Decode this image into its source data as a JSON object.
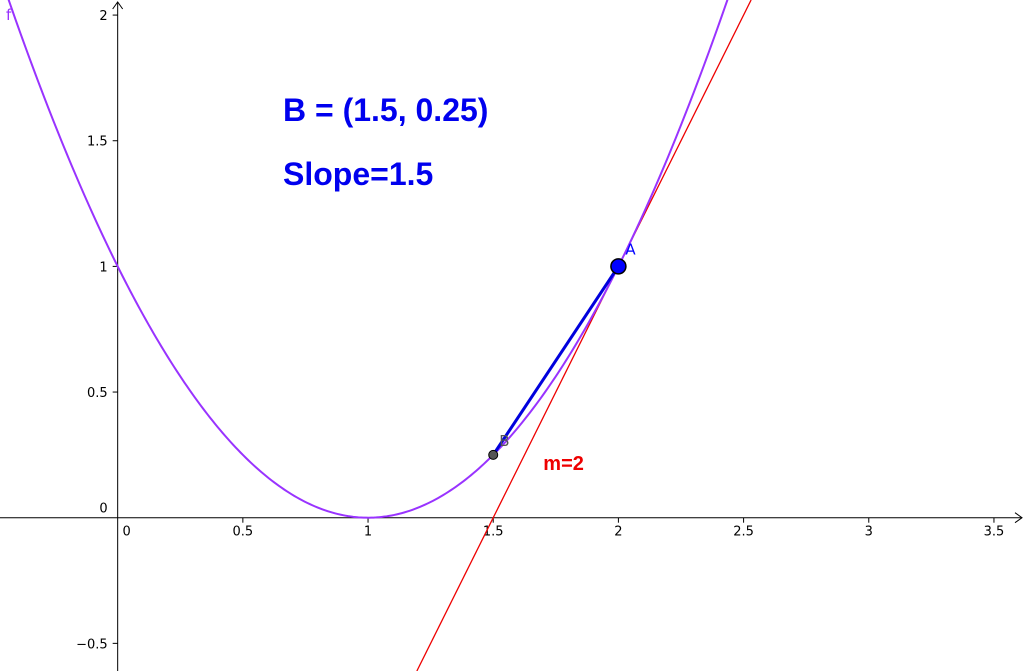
{
  "chart_data": {
    "type": "line",
    "x_range": [
      -0.47,
      3.62
    ],
    "y_range": [
      -0.61,
      2.06
    ],
    "x_ticks": [
      {
        "value": 0,
        "label": "0"
      },
      {
        "value": 0.5,
        "label": "0.5"
      },
      {
        "value": 1,
        "label": "1"
      },
      {
        "value": 1.5,
        "label": "1.5"
      },
      {
        "value": 2,
        "label": "2"
      },
      {
        "value": 2.5,
        "label": "2.5"
      },
      {
        "value": 3,
        "label": "3"
      },
      {
        "value": 3.5,
        "label": "3.5"
      }
    ],
    "y_ticks": [
      {
        "value": 0,
        "label": "0"
      },
      {
        "value": 0.5,
        "label": "0.5"
      },
      {
        "value": 1,
        "label": "1"
      },
      {
        "value": 1.5,
        "label": "1.5"
      },
      {
        "value": 2,
        "label": "2"
      },
      {
        "value": -0.5,
        "label": "−0.5"
      }
    ],
    "grid": false,
    "curve": {
      "name": "f",
      "expression": "(x-1)^2",
      "color": "#9933ff"
    },
    "tangent_line": {
      "point": [
        2,
        1
      ],
      "slope": 2,
      "label": "m=2",
      "color": "#ee0000"
    },
    "secant_segment": {
      "from": [
        1.5,
        0.25
      ],
      "to": [
        2,
        1
      ],
      "color": "#0000dd"
    },
    "points": [
      {
        "name": "A",
        "x": 2,
        "y": 1,
        "color": "#0000ff"
      },
      {
        "name": "B",
        "x": 1.5,
        "y": 0.25,
        "color": "#555555"
      }
    ],
    "annotations": [
      {
        "text": "B = (1.5, 0.25)"
      },
      {
        "text": "Slope=1.5"
      }
    ]
  }
}
